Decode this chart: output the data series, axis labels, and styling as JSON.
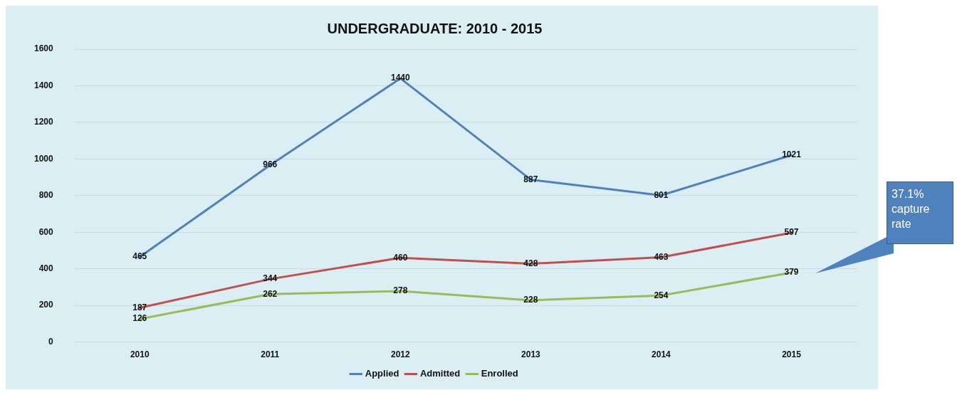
{
  "chart_data": {
    "type": "line",
    "title": "UNDERGRADUATE: 2010 - 2015",
    "categories": [
      "2010",
      "2011",
      "2012",
      "2013",
      "2014",
      "2015"
    ],
    "series": [
      {
        "name": "Applied",
        "color": "#4f81bd",
        "values": [
          465,
          966,
          1440,
          887,
          801,
          1021
        ]
      },
      {
        "name": "Admitted",
        "color": "#c0504d",
        "values": [
          187,
          344,
          460,
          428,
          463,
          597
        ]
      },
      {
        "name": "Enrolled",
        "color": "#9bbb59",
        "values": [
          126,
          262,
          278,
          228,
          254,
          379
        ]
      }
    ],
    "ylim": [
      0,
      1600
    ],
    "yticks": [
      0,
      200,
      400,
      600,
      800,
      1000,
      1200,
      1400,
      1600
    ],
    "grid": "y",
    "legend": "bottom",
    "data_labels": true,
    "marker": "none",
    "line_style": "solid",
    "annotations": [
      "37.1% capture rate"
    ]
  }
}
